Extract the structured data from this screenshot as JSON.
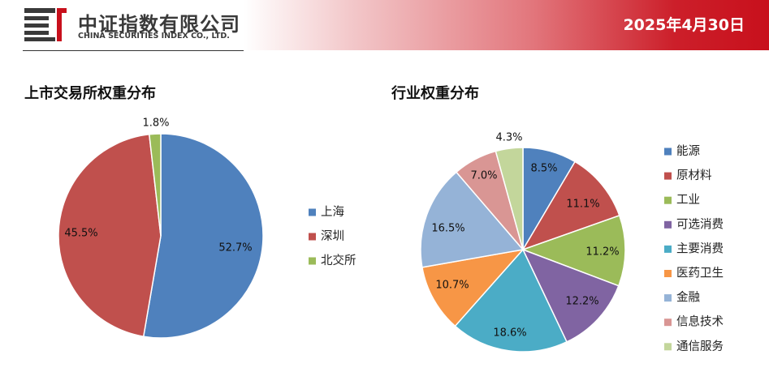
{
  "header": {
    "company_cn": "中证指数有限公司",
    "company_en": "CHINA SECURITIES INDEX CO., LTD.",
    "date": "2025年4月30日",
    "brand_color": "#c8101c"
  },
  "chart_data": [
    {
      "type": "pie",
      "title": "上市交易所权重分布",
      "categories": [
        "上海",
        "深圳",
        "北交所"
      ],
      "values": [
        52.7,
        45.5,
        1.8
      ],
      "labels": [
        "52.7%",
        "45.5%",
        "1.8%"
      ],
      "colors": [
        "#4f81bd",
        "#c0504d",
        "#9bbb59"
      ],
      "legend_position": "right"
    },
    {
      "type": "pie",
      "title": "行业权重分布",
      "categories": [
        "能源",
        "原材料",
        "工业",
        "可选消费",
        "主要消费",
        "医药卫生",
        "金融",
        "信息技术",
        "通信服务"
      ],
      "values": [
        8.5,
        11.1,
        11.2,
        12.2,
        18.6,
        10.7,
        16.5,
        7.0,
        4.3
      ],
      "labels": [
        "8.5%",
        "11.1%",
        "11.2%",
        "12.2%",
        "18.6%",
        "10.7%",
        "16.5%",
        "7.0%",
        "4.3%"
      ],
      "colors": [
        "#4f81bd",
        "#c0504d",
        "#9bbb59",
        "#8064a2",
        "#4bacc6",
        "#f79646",
        "#95b3d7",
        "#d99694",
        "#c3d69b"
      ],
      "legend_position": "right"
    }
  ]
}
